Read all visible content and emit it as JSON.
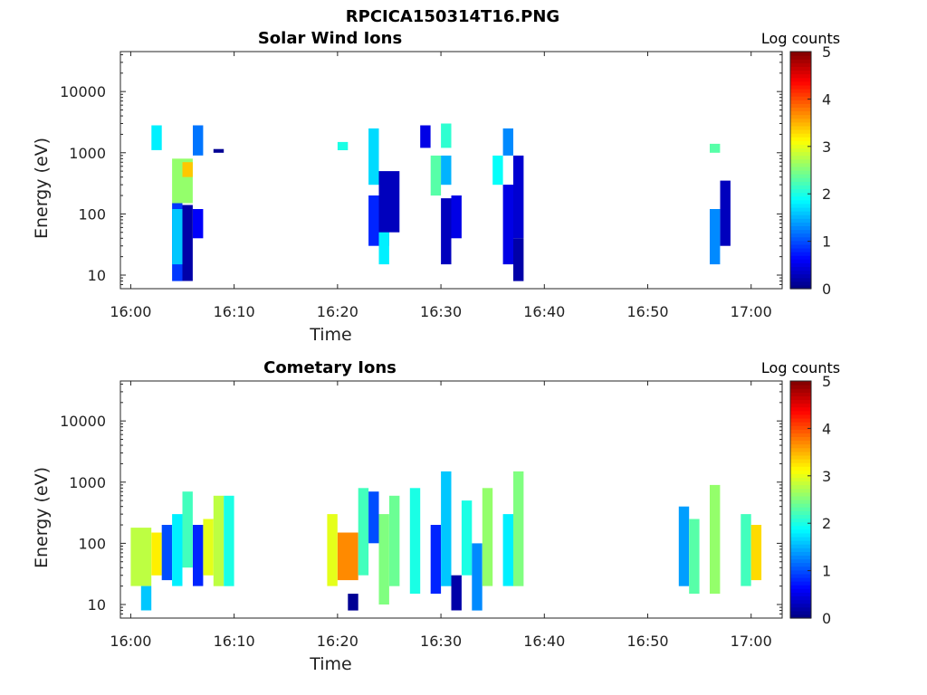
{
  "title": "RPCICA150314T16.PNG",
  "chart_data": [
    {
      "type": "heatmap",
      "title": "Solar Wind Ions",
      "xlabel": "Time",
      "ylabel": "Energy (eV)",
      "yscale": "log",
      "xlim": [
        "15:59",
        "17:03"
      ],
      "ylim": [
        6,
        45000
      ],
      "x_ticks": [
        "16:00",
        "16:10",
        "16:20",
        "16:30",
        "16:40",
        "16:50",
        "17:00"
      ],
      "y_ticks": [
        "10",
        "100",
        "1000",
        "10000"
      ],
      "colorbar": {
        "label": "Log counts",
        "range": [
          0,
          5
        ],
        "ticks": [
          "0",
          "1",
          "2",
          "3",
          "4",
          "5"
        ],
        "colormap": "jet"
      },
      "columns": [
        {
          "t": [
            "16:04",
            "16:05"
          ],
          "E": [
            8,
            150
          ],
          "level": 0.9
        },
        {
          "t": [
            "16:04",
            "16:05"
          ],
          "E": [
            15,
            120
          ],
          "level": 1.6
        },
        {
          "t": [
            "16:04",
            "16:06"
          ],
          "E": [
            150,
            800
          ],
          "level": 2.6
        },
        {
          "t": [
            "16:05",
            "16:06"
          ],
          "E": [
            400,
            700
          ],
          "level": 3.4
        },
        {
          "t": [
            "16:05",
            "16:06"
          ],
          "E": [
            8,
            140
          ],
          "level": 0.2
        },
        {
          "t": [
            "16:06",
            "16:07"
          ],
          "E": [
            40,
            120
          ],
          "level": 0.6
        },
        {
          "t": [
            "16:06",
            "16:07"
          ],
          "E": [
            900,
            2800
          ],
          "level": 1.2
        },
        {
          "t": [
            "16:02",
            "16:03"
          ],
          "E": [
            1100,
            2800
          ],
          "level": 1.8
        },
        {
          "t": [
            "16:08",
            "16:09"
          ],
          "E": [
            1000,
            1150
          ],
          "level": 0.1
        },
        {
          "t": [
            "16:20",
            "16:21"
          ],
          "E": [
            1100,
            1500
          ],
          "level": 2.0
        },
        {
          "t": [
            "16:23",
            "16:24"
          ],
          "E": [
            300,
            2500
          ],
          "level": 1.7
        },
        {
          "t": [
            "16:23",
            "16:25"
          ],
          "E": [
            30,
            200
          ],
          "level": 0.8
        },
        {
          "t": [
            "16:24",
            "16:25"
          ],
          "E": [
            15,
            60
          ],
          "level": 1.8
        },
        {
          "t": [
            "16:24",
            "16:26"
          ],
          "E": [
            50,
            500
          ],
          "level": 0.3
        },
        {
          "t": [
            "16:28",
            "16:29"
          ],
          "E": [
            1200,
            2800
          ],
          "level": 0.5
        },
        {
          "t": [
            "16:29",
            "16:30"
          ],
          "E": [
            200,
            900
          ],
          "level": 2.3
        },
        {
          "t": [
            "16:30",
            "16:31"
          ],
          "E": [
            15,
            180
          ],
          "level": 0.3
        },
        {
          "t": [
            "16:30",
            "16:31"
          ],
          "E": [
            300,
            900
          ],
          "level": 1.5
        },
        {
          "t": [
            "16:30",
            "16:31"
          ],
          "E": [
            1200,
            3000
          ],
          "level": 2.1
        },
        {
          "t": [
            "16:31",
            "16:32"
          ],
          "E": [
            40,
            200
          ],
          "level": 0.5
        },
        {
          "t": [
            "16:35",
            "16:36"
          ],
          "E": [
            300,
            900
          ],
          "level": 1.9
        },
        {
          "t": [
            "16:36",
            "16:37"
          ],
          "E": [
            15,
            300
          ],
          "level": 0.5
        },
        {
          "t": [
            "16:36",
            "16:37"
          ],
          "E": [
            900,
            2500
          ],
          "level": 1.3
        },
        {
          "t": [
            "16:37",
            "16:38"
          ],
          "E": [
            40,
            900
          ],
          "level": 0.4
        },
        {
          "t": [
            "16:37",
            "16:38"
          ],
          "E": [
            8,
            40
          ],
          "level": 0.2
        },
        {
          "t": [
            "16:56",
            "16:57"
          ],
          "E": [
            1000,
            1400
          ],
          "level": 2.3
        },
        {
          "t": [
            "16:56",
            "16:57"
          ],
          "E": [
            15,
            120
          ],
          "level": 1.3
        },
        {
          "t": [
            "16:57",
            "16:58"
          ],
          "E": [
            30,
            350
          ],
          "level": 0.3
        }
      ]
    },
    {
      "type": "heatmap",
      "title": "Cometary Ions",
      "xlabel": "Time",
      "ylabel": "Energy (eV)",
      "yscale": "log",
      "xlim": [
        "15:59",
        "17:03"
      ],
      "ylim": [
        6,
        45000
      ],
      "x_ticks": [
        "16:00",
        "16:10",
        "16:20",
        "16:30",
        "16:40",
        "16:50",
        "17:00"
      ],
      "y_ticks": [
        "10",
        "100",
        "1000",
        "10000"
      ],
      "colorbar": {
        "label": "Log counts",
        "range": [
          0,
          5
        ],
        "ticks": [
          "0",
          "1",
          "2",
          "3",
          "4",
          "5"
        ],
        "colormap": "jet"
      },
      "columns": [
        {
          "t": [
            "16:00",
            "16:02"
          ],
          "E": [
            20,
            180
          ],
          "level": 2.8
        },
        {
          "t": [
            "16:01",
            "16:02"
          ],
          "E": [
            8,
            20
          ],
          "level": 1.6
        },
        {
          "t": [
            "16:02",
            "16:03"
          ],
          "E": [
            30,
            150
          ],
          "level": 3.2
        },
        {
          "t": [
            "16:03",
            "16:04"
          ],
          "E": [
            25,
            200
          ],
          "level": 1.0
        },
        {
          "t": [
            "16:04",
            "16:05"
          ],
          "E": [
            20,
            300
          ],
          "level": 1.8
        },
        {
          "t": [
            "16:05",
            "16:06"
          ],
          "E": [
            40,
            700
          ],
          "level": 2.2
        },
        {
          "t": [
            "16:06",
            "16:07"
          ],
          "E": [
            20,
            200
          ],
          "level": 0.8
        },
        {
          "t": [
            "16:07",
            "16:08"
          ],
          "E": [
            30,
            250
          ],
          "level": 3.0
        },
        {
          "t": [
            "16:08",
            "16:09"
          ],
          "E": [
            20,
            600
          ],
          "level": 2.8
        },
        {
          "t": [
            "16:09",
            "16:10"
          ],
          "E": [
            20,
            600
          ],
          "level": 2.0
        },
        {
          "t": [
            "16:19",
            "16:20"
          ],
          "E": [
            20,
            300
          ],
          "level": 3.0
        },
        {
          "t": [
            "16:20",
            "16:22"
          ],
          "E": [
            25,
            150
          ],
          "level": 3.7
        },
        {
          "t": [
            "16:21",
            "16:22"
          ],
          "E": [
            8,
            15
          ],
          "level": 0.1
        },
        {
          "t": [
            "16:22",
            "16:23"
          ],
          "E": [
            30,
            800
          ],
          "level": 2.2
        },
        {
          "t": [
            "16:23",
            "16:24"
          ],
          "E": [
            100,
            700
          ],
          "level": 1.0
        },
        {
          "t": [
            "16:24",
            "16:25"
          ],
          "E": [
            10,
            300
          ],
          "level": 2.5
        },
        {
          "t": [
            "16:25",
            "16:26"
          ],
          "E": [
            20,
            600
          ],
          "level": 2.4
        },
        {
          "t": [
            "16:27",
            "16:28"
          ],
          "E": [
            15,
            800
          ],
          "level": 2.0
        },
        {
          "t": [
            "16:29",
            "16:30"
          ],
          "E": [
            15,
            200
          ],
          "level": 0.8
        },
        {
          "t": [
            "16:30",
            "16:31"
          ],
          "E": [
            20,
            1500
          ],
          "level": 1.6
        },
        {
          "t": [
            "16:31",
            "16:32"
          ],
          "E": [
            8,
            30
          ],
          "level": 0.2
        },
        {
          "t": [
            "16:32",
            "16:33"
          ],
          "E": [
            30,
            500
          ],
          "level": 2.0
        },
        {
          "t": [
            "16:33",
            "16:34"
          ],
          "E": [
            8,
            100
          ],
          "level": 1.3
        },
        {
          "t": [
            "16:34",
            "16:35"
          ],
          "E": [
            20,
            800
          ],
          "level": 2.6
        },
        {
          "t": [
            "16:36",
            "16:37"
          ],
          "E": [
            20,
            300
          ],
          "level": 1.8
        },
        {
          "t": [
            "16:37",
            "16:38"
          ],
          "E": [
            20,
            1500
          ],
          "level": 2.5
        },
        {
          "t": [
            "16:53",
            "16:54"
          ],
          "E": [
            20,
            400
          ],
          "level": 1.4
        },
        {
          "t": [
            "16:54",
            "16:55"
          ],
          "E": [
            15,
            250
          ],
          "level": 2.3
        },
        {
          "t": [
            "16:56",
            "16:57"
          ],
          "E": [
            15,
            900
          ],
          "level": 2.6
        },
        {
          "t": [
            "16:59",
            "17:00"
          ],
          "E": [
            20,
            300
          ],
          "level": 2.2
        },
        {
          "t": [
            "17:00",
            "17:01"
          ],
          "E": [
            25,
            200
          ],
          "level": 3.3
        }
      ]
    }
  ]
}
